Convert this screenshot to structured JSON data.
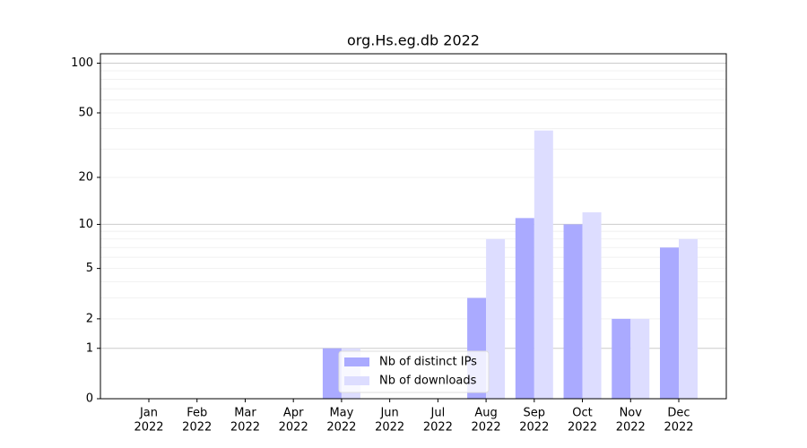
{
  "chart_data": {
    "type": "bar",
    "title": "org.Hs.eg.db 2022",
    "categories": [
      [
        "Jan",
        "2022"
      ],
      [
        "Feb",
        "2022"
      ],
      [
        "Mar",
        "2022"
      ],
      [
        "Apr",
        "2022"
      ],
      [
        "May",
        "2022"
      ],
      [
        "Jun",
        "2022"
      ],
      [
        "Jul",
        "2022"
      ],
      [
        "Aug",
        "2022"
      ],
      [
        "Sep",
        "2022"
      ],
      [
        "Oct",
        "2022"
      ],
      [
        "Nov",
        "2022"
      ],
      [
        "Dec",
        "2022"
      ]
    ],
    "series": [
      {
        "name": "Nb of distinct IPs",
        "color": "#aaaaff",
        "values": [
          0,
          0,
          0,
          0,
          1,
          0,
          0,
          3,
          11,
          10,
          2,
          7
        ]
      },
      {
        "name": "Nb of downloads",
        "color": "#ddddff",
        "values": [
          0,
          0,
          0,
          0,
          1,
          0,
          0,
          8,
          39,
          12,
          2,
          8
        ]
      }
    ],
    "yscale": "log1p",
    "ylim": [
      0,
      114
    ],
    "yticks": [
      0,
      1,
      2,
      5,
      10,
      20,
      50,
      100
    ],
    "grid": true,
    "major_grid_values": [
      1,
      10,
      100
    ],
    "minor_grid_values": [
      2,
      3,
      4,
      5,
      6,
      7,
      8,
      9,
      20,
      30,
      40,
      50,
      60,
      70,
      80,
      90
    ],
    "legend": "lower center"
  }
}
